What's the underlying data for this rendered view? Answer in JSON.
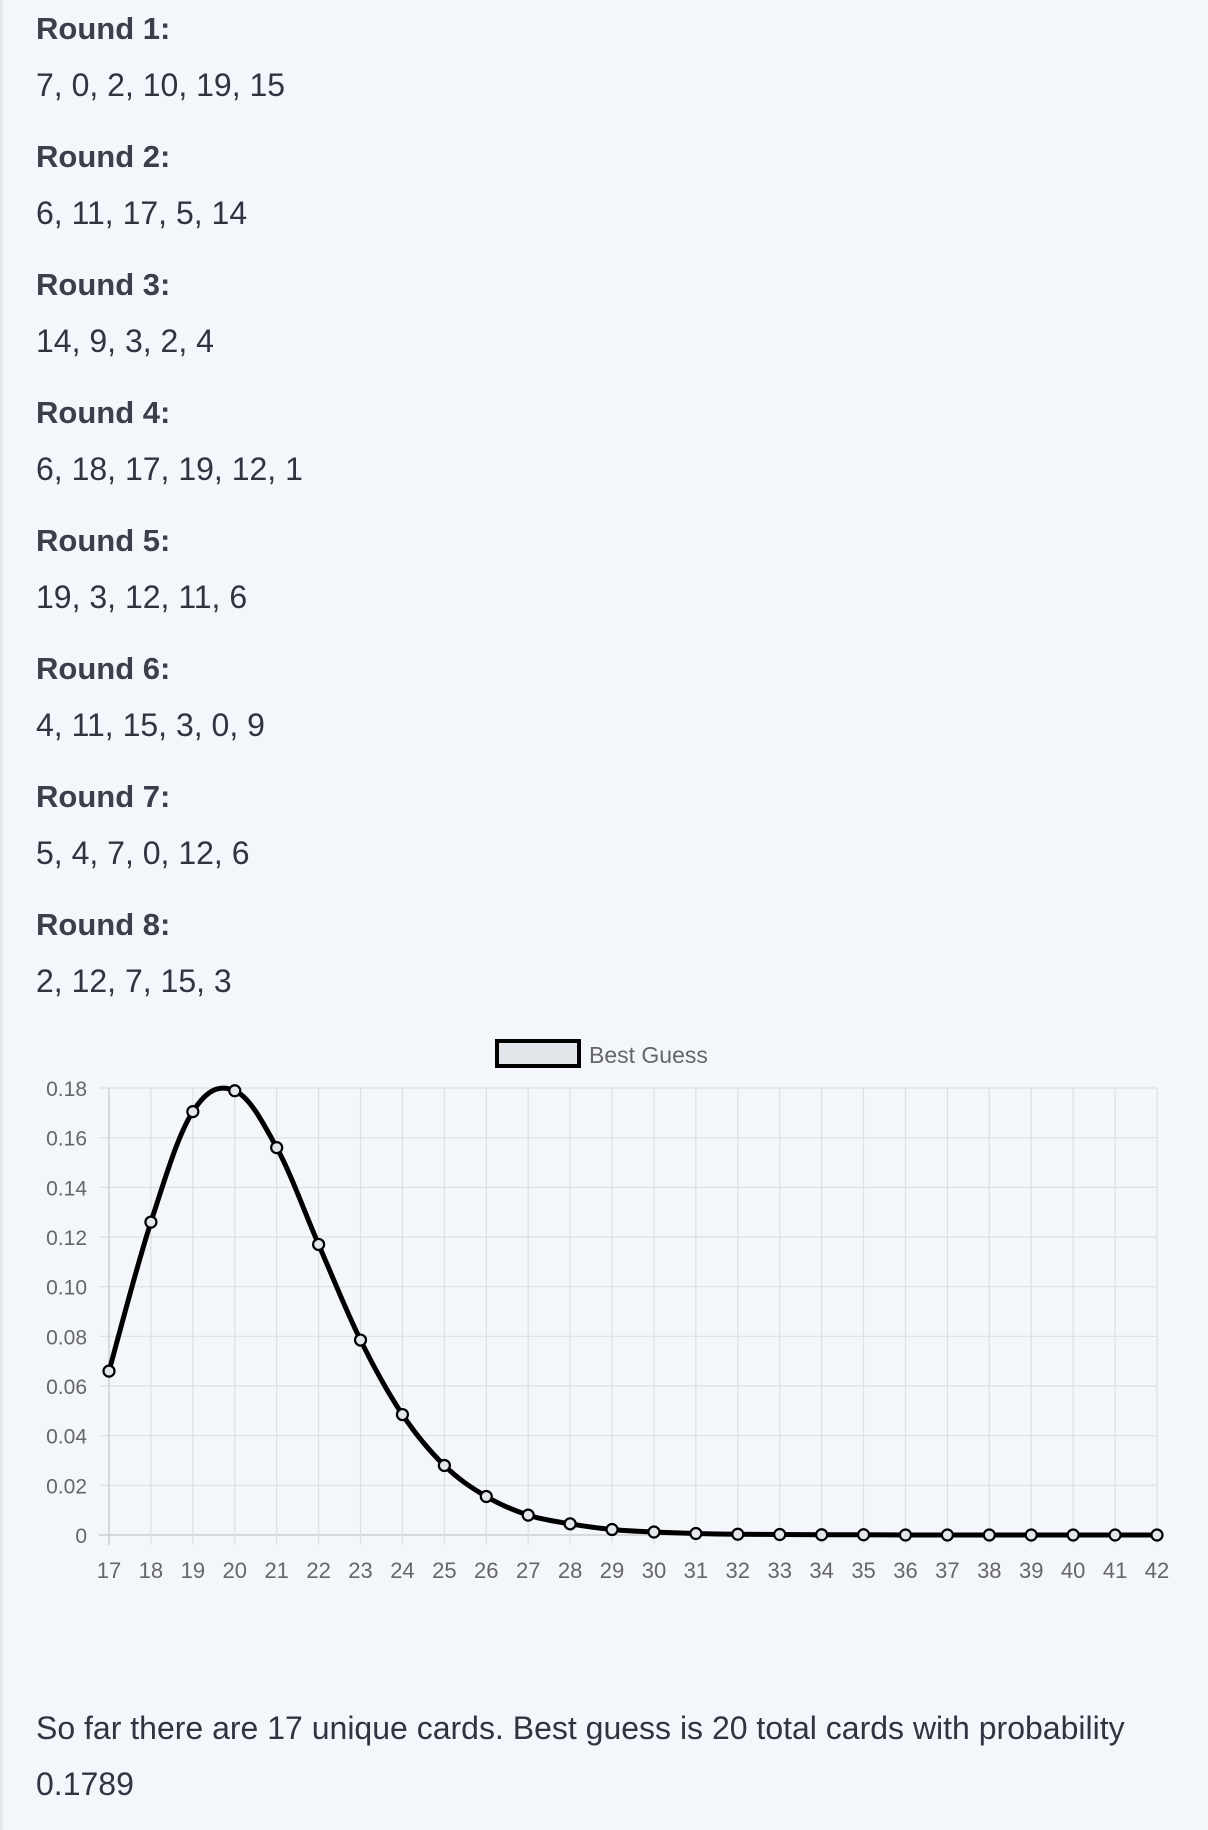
{
  "rounds": [
    {
      "label": "Round 1:",
      "cards": "7, 0, 2, 10, 19, 15"
    },
    {
      "label": "Round 2:",
      "cards": "6, 11, 17, 5, 14"
    },
    {
      "label": "Round 3:",
      "cards": "14, 9, 3, 2, 4"
    },
    {
      "label": "Round 4:",
      "cards": "6, 18, 17, 19, 12, 1"
    },
    {
      "label": "Round 5:",
      "cards": "19, 3, 12, 11, 6"
    },
    {
      "label": "Round 6:",
      "cards": "4, 11, 15, 3, 0, 9"
    },
    {
      "label": "Round 7:",
      "cards": "5, 4, 7, 0, 12, 6"
    },
    {
      "label": "Round 8:",
      "cards": "2, 12, 7, 15, 3"
    }
  ],
  "chart_data": {
    "type": "line",
    "categories": [
      "17",
      "18",
      "19",
      "20",
      "21",
      "22",
      "23",
      "24",
      "25",
      "26",
      "27",
      "28",
      "29",
      "30",
      "31",
      "32",
      "33",
      "34",
      "35",
      "36",
      "37",
      "38",
      "39",
      "40",
      "41",
      "42"
    ],
    "series": [
      {
        "name": "Best Guess",
        "color": "#000000",
        "values": [
          0.066,
          0.126,
          0.1705,
          0.1789,
          0.156,
          0.117,
          0.0785,
          0.0485,
          0.028,
          0.0155,
          0.008,
          0.0045,
          0.0022,
          0.0012,
          0.0006,
          0.0003,
          0.0002,
          0.0001,
          0.0001,
          0,
          0,
          0,
          0,
          0,
          0,
          0
        ]
      }
    ],
    "yticks": [
      "0",
      "0.02",
      "0.04",
      "0.06",
      "0.08",
      "0.10",
      "0.12",
      "0.14",
      "0.16",
      "0.18"
    ],
    "ylim": [
      0,
      0.18
    ],
    "grid": true,
    "legend": "top-center"
  },
  "summary": "So far there are 17 unique cards. Best guess is 20 total cards with probability 0.1789"
}
